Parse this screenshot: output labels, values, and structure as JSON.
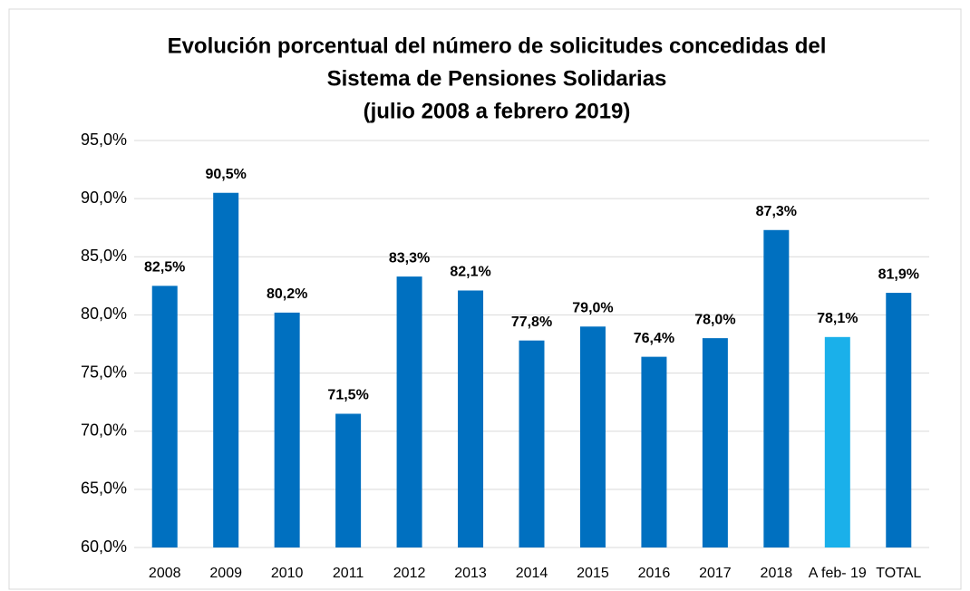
{
  "chart_data": {
    "type": "bar",
    "title": [
      "Evolución porcentual del número de solicitudes concedidas del",
      "Sistema de Pensiones Solidarias",
      "(julio 2008 a febrero 2019)"
    ],
    "categories": [
      "2008",
      "2009",
      "2010",
      "2011",
      "2012",
      "2013",
      "2014",
      "2015",
      "2016",
      "2017",
      "2018",
      "A feb- 19",
      "TOTAL"
    ],
    "values": [
      82.5,
      90.5,
      80.2,
      71.5,
      83.3,
      82.1,
      77.8,
      79.0,
      76.4,
      78.0,
      87.3,
      78.1,
      81.9
    ],
    "value_labels": [
      "82,5%",
      "90,5%",
      "80,2%",
      "71,5%",
      "83,3%",
      "82,1%",
      "77,8%",
      "79,0%",
      "76,4%",
      "78,0%",
      "87,3%",
      "78,1%",
      "81,9%"
    ],
    "colors": [
      "#0070c0",
      "#0070c0",
      "#0070c0",
      "#0070c0",
      "#0070c0",
      "#0070c0",
      "#0070c0",
      "#0070c0",
      "#0070c0",
      "#0070c0",
      "#0070c0",
      "#1ab0ea",
      "#0070c0"
    ],
    "ylim": [
      60,
      95
    ],
    "yticks": [
      {
        "value": 60,
        "label": "60,0%"
      },
      {
        "value": 65,
        "label": "65,0%"
      },
      {
        "value": 70,
        "label": "70,0%"
      },
      {
        "value": 75,
        "label": "75,0%"
      },
      {
        "value": 80,
        "label": "80,0%"
      },
      {
        "value": 85,
        "label": "85,0%"
      },
      {
        "value": 90,
        "label": "90,0%"
      },
      {
        "value": 95,
        "label": "95,0%"
      }
    ],
    "grid": true
  }
}
